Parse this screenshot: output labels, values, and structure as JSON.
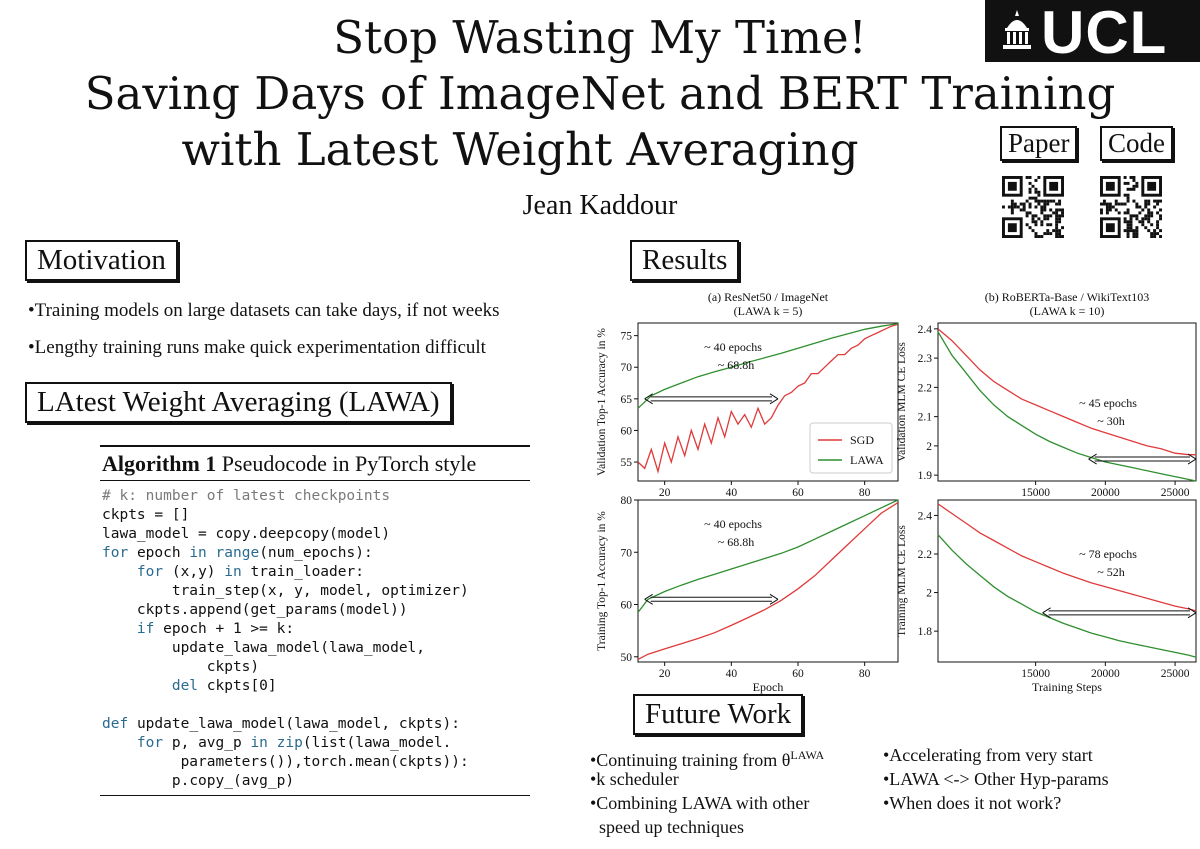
{
  "title": {
    "line1": "Stop Wasting My Time!",
    "line2": "Saving Days of ImageNet and BERT Training",
    "line3": "with Latest Weight Averaging"
  },
  "author": "Jean Kaddour",
  "logo": {
    "text": "UCL"
  },
  "links": {
    "paper": "Paper",
    "code": "Code"
  },
  "motivation": {
    "heading": "Motivation",
    "bullets": [
      "•Training models on large datasets can take days, if not weeks",
      "•Lengthy training runs make quick experimentation difficult"
    ]
  },
  "lawa": {
    "heading": "LAtest Weight Averaging (LAWA)",
    "algorithm": {
      "label": "Algorithm 1",
      "title": "Pseudocode in PyTorch style",
      "code_lines": [
        "# k: number of latest checkpoints",
        "ckpts = []",
        "lawa_model = copy.deepcopy(model)",
        "for epoch in range(num_epochs):",
        "    for (x,y) in train_loader:",
        "        train_step(x, y, model, optimizer)",
        "    ckpts.append(get_params(model))",
        "    if epoch + 1 >= k:",
        "        update_lawa_model(lawa_model,",
        "            ckpts)",
        "        del ckpts[0]",
        "",
        "def update_lawa_model(lawa_model, ckpts):",
        "    for p, avg_p in zip(list(lawa_model.",
        "         parameters()),torch.mean(ckpts)):",
        "        p.copy_(avg_p)"
      ]
    }
  },
  "results": {
    "heading": "Results"
  },
  "future_work": {
    "heading": "Future Work",
    "left": [
      "•Continuing training from θ",
      "•k scheduler",
      "•Combining LAWA with other",
      "  speed up techniques"
    ],
    "left_sup": "LAWA",
    "right": [
      "•Accelerating from very start",
      "•LAWA <-> Other Hyp-params",
      "•When does it not work?"
    ]
  },
  "colors": {
    "sgd": "#e03a3a",
    "lawa": "#2f8f2f",
    "ink": "#111111",
    "keyword": "#2a6b8f"
  },
  "chart_data": [
    {
      "type": "line",
      "title": "(a) ResNet50 / ImageNet",
      "subtitle": "(LAWA k = 5)",
      "xlabel": "",
      "ylabel": "Validation Top-1 Accuracy in %",
      "xlim": [
        12,
        90
      ],
      "ylim": [
        52,
        77
      ],
      "xticks": [
        20,
        40,
        60,
        80
      ],
      "yticks": [
        55,
        60,
        65,
        70,
        75
      ],
      "legend": {
        "position": "bottom-right",
        "entries": [
          "SGD",
          "LAWA"
        ]
      },
      "annotation": {
        "line1": "~ 40 epochs",
        "line2": "~ 68.8h",
        "arrow_x": [
          14,
          54
        ],
        "arrow_y": 65
      },
      "series": [
        {
          "name": "SGD",
          "x": [
            12,
            14,
            16,
            18,
            20,
            22,
            24,
            26,
            28,
            30,
            32,
            34,
            36,
            38,
            40,
            42,
            44,
            46,
            48,
            50,
            52,
            54,
            56,
            58,
            60,
            62,
            64,
            66,
            68,
            70,
            72,
            74,
            76,
            78,
            80,
            82,
            84,
            86,
            88,
            90
          ],
          "y": [
            55,
            54,
            57,
            53.5,
            58,
            55,
            59,
            56,
            60,
            57,
            61,
            58,
            62,
            59,
            63,
            61,
            62.5,
            60.5,
            63.5,
            61,
            62,
            64,
            65.5,
            66,
            67,
            67.5,
            69,
            69,
            70,
            71,
            72,
            72,
            73,
            73.5,
            74.5,
            75,
            75.5,
            76,
            76.5,
            76.8
          ]
        },
        {
          "name": "LAWA",
          "x": [
            12,
            16,
            20,
            25,
            30,
            35,
            40,
            45,
            50,
            55,
            60,
            65,
            70,
            75,
            80,
            85,
            90
          ],
          "y": [
            63.5,
            65.5,
            66.5,
            67.5,
            68.5,
            69.3,
            70,
            70.8,
            71.5,
            72.2,
            73,
            73.8,
            74.6,
            75.3,
            76,
            76.5,
            76.9
          ]
        }
      ]
    },
    {
      "type": "line",
      "title": "(b) RoBERTa-Base / WikiText103",
      "subtitle": "(LAWA k = 10)",
      "xlabel": "",
      "ylabel": "Validation MLM CE Loss",
      "xlim": [
        8000,
        26500
      ],
      "ylim": [
        1.88,
        2.42
      ],
      "xticks": [
        15000,
        20000,
        25000
      ],
      "yticks": [
        1.9,
        2.0,
        2.1,
        2.2,
        2.3,
        2.4
      ],
      "annotation": {
        "line1": "~ 45 epochs",
        "line2": "~ 30h",
        "arrow_x": [
          18800,
          26500
        ],
        "arrow_y": 1.955
      },
      "series": [
        {
          "name": "SGD",
          "x": [
            8000,
            9000,
            10000,
            11000,
            12000,
            13000,
            14000,
            15000,
            16000,
            17000,
            18000,
            19000,
            20000,
            21000,
            22000,
            23000,
            24000,
            25000,
            26000,
            26500
          ],
          "y": [
            2.4,
            2.36,
            2.31,
            2.26,
            2.22,
            2.19,
            2.16,
            2.14,
            2.12,
            2.1,
            2.08,
            2.06,
            2.045,
            2.03,
            2.015,
            2.0,
            1.99,
            1.975,
            1.97,
            1.97
          ]
        },
        {
          "name": "LAWA",
          "x": [
            8000,
            9000,
            10000,
            11000,
            12000,
            13000,
            14000,
            15000,
            16000,
            17000,
            18000,
            19000,
            20000,
            21000,
            22000,
            23000,
            24000,
            25000,
            26000,
            26500
          ],
          "y": [
            2.39,
            2.31,
            2.25,
            2.19,
            2.14,
            2.1,
            2.07,
            2.04,
            2.015,
            1.995,
            1.975,
            1.96,
            1.945,
            1.935,
            1.925,
            1.915,
            1.905,
            1.895,
            1.885,
            1.88
          ]
        }
      ]
    },
    {
      "type": "line",
      "title": "",
      "xlabel": "Epoch",
      "ylabel": "Training Top-1 Accuracy in %",
      "xlim": [
        12,
        90
      ],
      "ylim": [
        49,
        80
      ],
      "xticks": [
        20,
        40,
        60,
        80
      ],
      "yticks": [
        50,
        60,
        70,
        80
      ],
      "annotation": {
        "line1": "~ 40 epochs",
        "line2": "~ 68.8h",
        "arrow_x": [
          14,
          54
        ],
        "arrow_y": 61
      },
      "series": [
        {
          "name": "SGD",
          "x": [
            12,
            15,
            20,
            25,
            30,
            35,
            40,
            45,
            50,
            55,
            60,
            65,
            70,
            75,
            80,
            85,
            90
          ],
          "y": [
            49.5,
            50.5,
            51.5,
            52.5,
            53.5,
            54.6,
            56,
            57.5,
            59,
            60.8,
            63,
            65.5,
            68.5,
            71.5,
            74.5,
            77.5,
            79.5
          ]
        },
        {
          "name": "LAWA",
          "x": [
            12,
            15,
            20,
            25,
            30,
            35,
            40,
            45,
            50,
            55,
            60,
            65,
            70,
            75,
            80,
            85,
            90
          ],
          "y": [
            58.5,
            61,
            62.5,
            63.7,
            64.8,
            65.8,
            66.8,
            67.8,
            68.8,
            69.8,
            71,
            72.5,
            74,
            75.5,
            77,
            78.5,
            80
          ]
        }
      ]
    },
    {
      "type": "line",
      "title": "",
      "xlabel": "Training Steps",
      "ylabel": "Training MLM CE Loss",
      "xlim": [
        8000,
        26500
      ],
      "ylim": [
        1.64,
        2.48
      ],
      "xticks": [
        15000,
        20000,
        25000
      ],
      "yticks": [
        1.8,
        2.0,
        2.2,
        2.4
      ],
      "annotation": {
        "line1": "~ 78 epochs",
        "line2": "~ 52h",
        "arrow_x": [
          15500,
          26500
        ],
        "arrow_y": 1.895
      },
      "series": [
        {
          "name": "SGD",
          "x": [
            8000,
            9000,
            10000,
            11000,
            12000,
            13000,
            14000,
            15000,
            16000,
            17000,
            18000,
            19000,
            20000,
            21000,
            22000,
            23000,
            24000,
            25000,
            26000,
            26500
          ],
          "y": [
            2.46,
            2.41,
            2.36,
            2.31,
            2.27,
            2.23,
            2.19,
            2.16,
            2.13,
            2.1,
            2.075,
            2.05,
            2.03,
            2.01,
            1.99,
            1.97,
            1.95,
            1.93,
            1.915,
            1.905
          ]
        },
        {
          "name": "LAWA",
          "x": [
            8000,
            9000,
            10000,
            11000,
            12000,
            13000,
            14000,
            15000,
            16000,
            17000,
            18000,
            19000,
            20000,
            21000,
            22000,
            23000,
            24000,
            25000,
            26000,
            26500
          ],
          "y": [
            2.3,
            2.22,
            2.15,
            2.09,
            2.03,
            1.98,
            1.94,
            1.9,
            1.87,
            1.84,
            1.815,
            1.79,
            1.77,
            1.75,
            1.735,
            1.72,
            1.705,
            1.69,
            1.675,
            1.665
          ]
        }
      ]
    }
  ]
}
